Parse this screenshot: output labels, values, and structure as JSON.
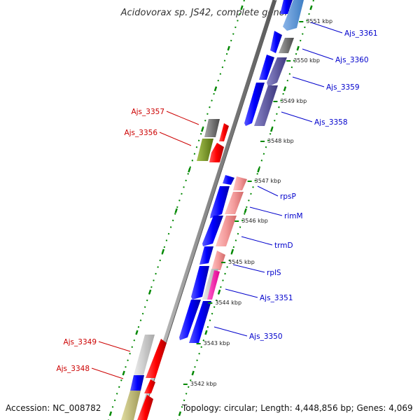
{
  "title": "Acidovorax sp. JS42, complete genome",
  "footer": {
    "accession": "Accession: NC_008782",
    "topology": "Topology: circular; Length: 4,448,856 bp; Genes: 4,069"
  },
  "kbp_ticks": [
    "3551 kbp",
    "3550 kbp",
    "3549 kbp",
    "3548 kbp",
    "3547 kbp",
    "3546 kbp",
    "3545 kbp",
    "3544 kbp",
    "3543 kbp",
    "3542 kbp"
  ],
  "genes_right": [
    "Ajs_3361",
    "Ajs_3360",
    "Ajs_3359",
    "Ajs_3358",
    "rpsP",
    "rimM",
    "trmD",
    "rplS",
    "Ajs_3351",
    "Ajs_3350"
  ],
  "genes_left": [
    "Ajs_3357",
    "Ajs_3356",
    "Ajs_3349",
    "Ajs_3348"
  ],
  "colors": {
    "right_label": "#0000cc",
    "left_label": "#cc0000",
    "forward_cds": "#0000ff",
    "reverse_cds": "#ff0000",
    "backbone": "#888888",
    "tick_dots": "#008800"
  }
}
